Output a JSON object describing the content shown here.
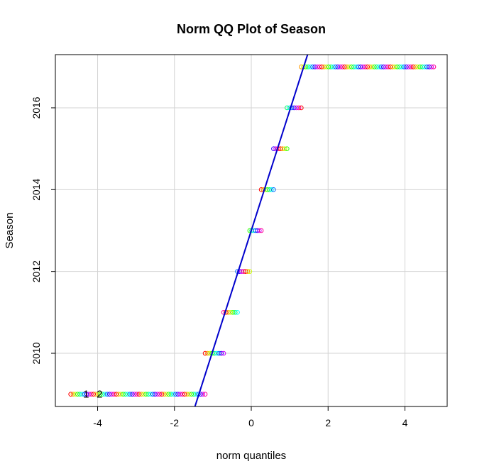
{
  "chart_data": {
    "type": "scatter",
    "title": "Norm QQ Plot of Season",
    "xlabel": "norm quantiles",
    "ylabel": "Season",
    "xlim": [
      -5.1,
      5.1
    ],
    "ylim": [
      2008.7,
      2017.3
    ],
    "x_ticks": [
      "-4",
      "-2",
      "0",
      "2",
      "4"
    ],
    "y_ticks": [
      "2010",
      "2012",
      "2014",
      "2016"
    ],
    "grid": true,
    "reference_line": {
      "x": [
        -1.5,
        1.5
      ],
      "y": [
        2008.6,
        2017.4
      ],
      "color": "#0000cc"
    },
    "groups": [
      {
        "y": 2009,
        "x_range": [
          -4.7,
          -1.2
        ]
      },
      {
        "y": 2010,
        "x_range": [
          -1.2,
          -0.72
        ]
      },
      {
        "y": 2011,
        "x_range": [
          -0.72,
          -0.36
        ]
      },
      {
        "y": 2012,
        "x_range": [
          -0.36,
          -0.04
        ]
      },
      {
        "y": 2013,
        "x_range": [
          -0.04,
          0.26
        ]
      },
      {
        "y": 2014,
        "x_range": [
          0.26,
          0.58
        ]
      },
      {
        "y": 2015,
        "x_range": [
          0.58,
          0.93
        ]
      },
      {
        "y": 2016,
        "x_range": [
          0.93,
          1.3
        ]
      },
      {
        "y": 2017,
        "x_range": [
          1.3,
          4.75
        ]
      }
    ],
    "point_colors": [
      "#ff0000",
      "#ff9900",
      "#ccff00",
      "#33ff00",
      "#00ff66",
      "#00ffff",
      "#0066ff",
      "#3300ff",
      "#cc00ff",
      "#ff0099"
    ],
    "annotations": [
      {
        "text": "1",
        "x": -4.3,
        "y": 2009
      },
      {
        "text": "2",
        "x": -3.95,
        "y": 2009
      }
    ]
  }
}
